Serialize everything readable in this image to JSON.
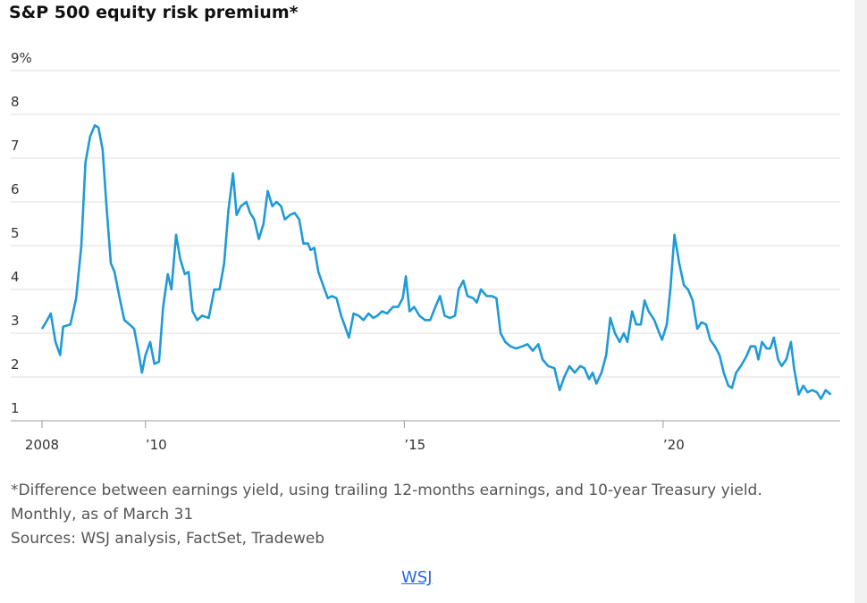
{
  "chart_data": {
    "type": "line",
    "title": "S&P 500 equity risk premium*",
    "footnote": "*Difference between earnings yield, using trailing 12-months earnings, and 10-year Treasury yield. Monthly, as of March 31",
    "sources": "Sources: WSJ analysis, FactSet, Tradeweb",
    "link": "WSJ",
    "xlim": [
      2008,
      2023.3
    ],
    "xticks": [
      2008,
      {
        "value": 2010,
        "label": "’10"
      },
      {
        "value": 2015,
        "label": "’15"
      },
      {
        "value": 2020,
        "label": "’20"
      }
    ],
    "ylim": [
      1,
      9
    ],
    "yticks": [
      1,
      2,
      3,
      4,
      5,
      6,
      7,
      8,
      {
        "value": 9,
        "label": "9%"
      }
    ],
    "grid": true,
    "series": [
      {
        "color": "#1f9ad6",
        "x": [
          2008.0,
          2008.1,
          2008.17,
          2008.26,
          2008.35,
          2008.41,
          2008.55,
          2008.66,
          2008.76,
          2008.84,
          2008.93,
          2009.02,
          2009.09,
          2009.17,
          2009.24,
          2009.33,
          2009.4,
          2009.5,
          2009.59,
          2009.69,
          2009.78,
          2009.86,
          2009.93,
          2010.0,
          2010.09,
          2010.17,
          2010.26,
          2010.34,
          2010.43,
          2010.5,
          2010.59,
          2010.67,
          2010.76,
          2010.83,
          2010.91,
          2011.0,
          2011.09,
          2011.22,
          2011.33,
          2011.43,
          2011.52,
          2011.6,
          2011.69,
          2011.76,
          2011.84,
          2011.95,
          2012.02,
          2012.1,
          2012.19,
          2012.28,
          2012.36,
          2012.45,
          2012.53,
          2012.62,
          2012.69,
          2012.79,
          2012.88,
          2012.97,
          2013.05,
          2013.14,
          2013.19,
          2013.26,
          2013.34,
          2013.43,
          2013.52,
          2013.6,
          2013.69,
          2013.78,
          2013.84,
          2013.93,
          2014.02,
          2014.12,
          2014.21,
          2014.31,
          2014.4,
          2014.48,
          2014.57,
          2014.67,
          2014.78,
          2014.88,
          2014.97,
          2015.03,
          2015.1,
          2015.19,
          2015.29,
          2015.4,
          2015.5,
          2015.6,
          2015.69,
          2015.78,
          2015.88,
          2015.98,
          2016.05,
          2016.14,
          2016.22,
          2016.33,
          2016.4,
          2016.48,
          2016.59,
          2016.69,
          2016.78,
          2016.86,
          2016.95,
          2017.05,
          2017.16,
          2017.28,
          2017.38,
          2017.48,
          2017.59,
          2017.67,
          2017.78,
          2017.9,
          2018.0,
          2018.09,
          2018.19,
          2018.29,
          2018.4,
          2018.48,
          2018.57,
          2018.64,
          2018.71,
          2018.81,
          2018.9,
          2018.98,
          2019.07,
          2019.16,
          2019.24,
          2019.31,
          2019.4,
          2019.48,
          2019.57,
          2019.64,
          2019.72,
          2019.83,
          2019.91,
          2019.98,
          2020.07,
          2020.14,
          2020.22,
          2020.31,
          2020.4,
          2020.48,
          2020.57,
          2020.66,
          2020.74,
          2020.83,
          2020.91,
          2021.0,
          2021.09,
          2021.17,
          2021.26,
          2021.33,
          2021.41,
          2021.5,
          2021.6,
          2021.69,
          2021.78,
          2021.84,
          2021.91,
          2022.0,
          2022.07,
          2022.14,
          2022.22,
          2022.29,
          2022.38,
          2022.47,
          2022.53,
          2022.62,
          2022.71,
          2022.79,
          2022.88,
          2022.97,
          2023.05,
          2023.14,
          2023.24
        ],
        "values": [
          3.1,
          3.3,
          3.45,
          2.8,
          2.5,
          3.15,
          3.2,
          3.8,
          5.0,
          6.9,
          7.5,
          7.75,
          7.7,
          7.2,
          6.0,
          4.6,
          4.4,
          3.8,
          3.3,
          3.2,
          3.1,
          2.6,
          2.1,
          2.5,
          2.8,
          2.3,
          2.35,
          3.6,
          4.35,
          4.0,
          5.25,
          4.7,
          4.35,
          4.4,
          3.5,
          3.3,
          3.4,
          3.35,
          4.0,
          4.0,
          4.6,
          5.8,
          6.65,
          5.7,
          5.9,
          6.0,
          5.75,
          5.6,
          5.15,
          5.5,
          6.25,
          5.9,
          6.0,
          5.9,
          5.6,
          5.7,
          5.75,
          5.6,
          5.05,
          5.05,
          4.9,
          4.95,
          4.4,
          4.1,
          3.8,
          3.85,
          3.8,
          3.4,
          3.2,
          2.9,
          3.45,
          3.4,
          3.3,
          3.45,
          3.35,
          3.4,
          3.5,
          3.45,
          3.6,
          3.6,
          3.8,
          4.3,
          3.5,
          3.6,
          3.4,
          3.3,
          3.3,
          3.6,
          3.85,
          3.4,
          3.35,
          3.4,
          4.0,
          4.2,
          3.85,
          3.8,
          3.7,
          4.0,
          3.85,
          3.85,
          3.8,
          3.0,
          2.8,
          2.7,
          2.65,
          2.7,
          2.75,
          2.6,
          2.75,
          2.4,
          2.25,
          2.2,
          1.7,
          2.0,
          2.25,
          2.1,
          2.25,
          2.2,
          1.95,
          2.1,
          1.85,
          2.1,
          2.5,
          3.35,
          3.0,
          2.8,
          3.0,
          2.8,
          3.5,
          3.2,
          3.2,
          3.75,
          3.5,
          3.3,
          3.05,
          2.85,
          3.2,
          4.0,
          5.25,
          4.6,
          4.1,
          4.0,
          3.75,
          3.1,
          3.25,
          3.2,
          2.85,
          2.7,
          2.5,
          2.1,
          1.8,
          1.75,
          2.1,
          2.25,
          2.45,
          2.7,
          2.7,
          2.4,
          2.8,
          2.65,
          2.65,
          2.9,
          2.4,
          2.25,
          2.4,
          2.8,
          2.2,
          1.6,
          1.8,
          1.65,
          1.7,
          1.65,
          1.5,
          1.7,
          1.6
        ]
      }
    ]
  }
}
